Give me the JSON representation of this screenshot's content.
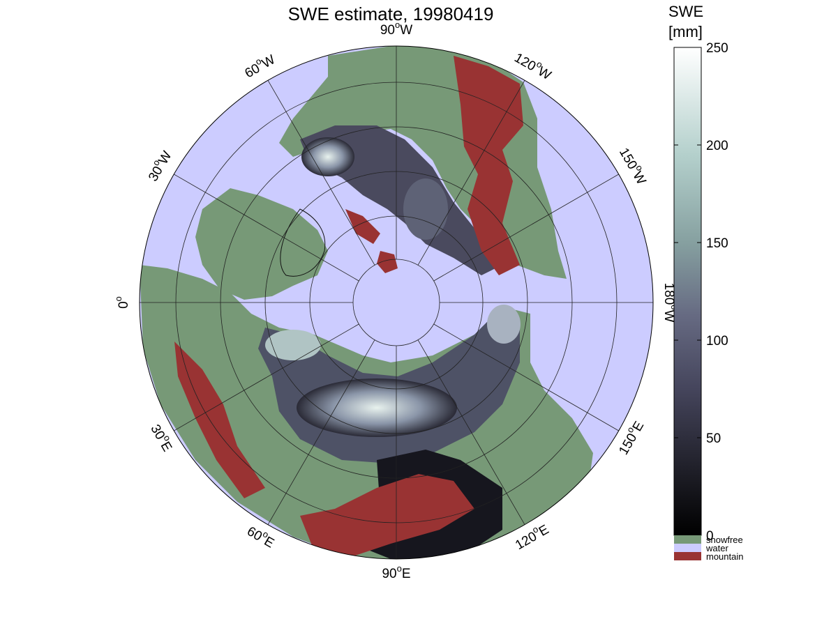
{
  "title": "SWE estimate, 19980419",
  "colors": {
    "water": "#ccccff",
    "snowfree": "#779977",
    "mountain": "#993333",
    "coast": "#111111"
  },
  "longitude_labels": [
    {
      "deg": "90",
      "hemi": "W"
    },
    {
      "deg": "120",
      "hemi": "W"
    },
    {
      "deg": "150",
      "hemi": "W"
    },
    {
      "deg": "180",
      "hemi": "W"
    },
    {
      "deg": "150",
      "hemi": "E"
    },
    {
      "deg": "120",
      "hemi": "E"
    },
    {
      "deg": "90",
      "hemi": "E"
    },
    {
      "deg": "60",
      "hemi": "E"
    },
    {
      "deg": "30",
      "hemi": "E"
    },
    {
      "deg": "0",
      "hemi": ""
    },
    {
      "deg": "30",
      "hemi": "W"
    },
    {
      "deg": "60",
      "hemi": "W"
    }
  ],
  "colorbar": {
    "title_line1": "SWE",
    "title_line2": "[mm]",
    "min": 0,
    "max": 250,
    "ticks": [
      {
        "value": 0,
        "label": "0"
      },
      {
        "value": 50,
        "label": "50"
      },
      {
        "value": 100,
        "label": "100"
      },
      {
        "value": 150,
        "label": "150"
      },
      {
        "value": 200,
        "label": "200"
      },
      {
        "value": 250,
        "label": "250"
      }
    ],
    "categories": [
      {
        "label": "snowfree",
        "color": "#779977"
      },
      {
        "label": "water",
        "color": "#ccccff"
      },
      {
        "label": "mountain",
        "color": "#993333"
      }
    ]
  }
}
